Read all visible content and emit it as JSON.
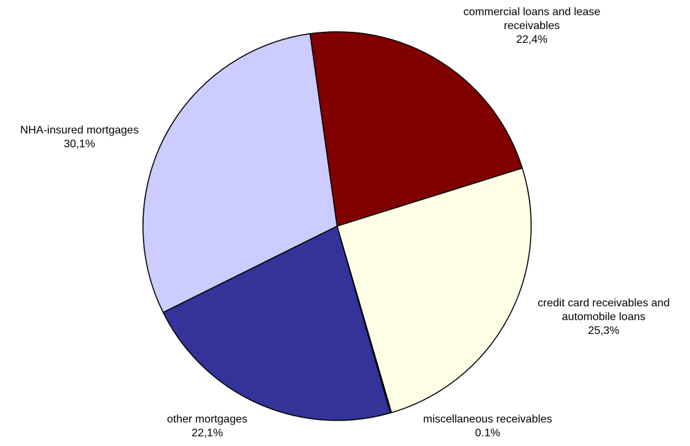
{
  "chart_data": {
    "type": "pie",
    "title": "",
    "start_angle_deg": -8,
    "direction": "clockwise",
    "slices": [
      {
        "name": "commercial loans and lease receivables",
        "value": 22.4,
        "label_lines": [
          "commercial loans and lease",
          "receivables"
        ],
        "value_label": "22,4%",
        "color": "#800000"
      },
      {
        "name": "credit card receivables and automobile loans",
        "value": 25.3,
        "label_lines": [
          "credit card receivables and",
          "automobile loans"
        ],
        "value_label": "25,3%",
        "color": "#FFFFE6"
      },
      {
        "name": "miscellaneous receivables",
        "value": 0.1,
        "label_lines": [
          "miscellaneous receivables"
        ],
        "value_label": "0.1%",
        "color": "#FFFFE6"
      },
      {
        "name": "other mortgages",
        "value": 22.1,
        "label_lines": [
          "other mortgages"
        ],
        "value_label": "22,1%",
        "color": "#333399"
      },
      {
        "name": "NHA-insured mortgages",
        "value": 30.1,
        "label_lines": [
          "NHA-insured mortgages"
        ],
        "value_label": "30,1%",
        "color": "#CCCCFF"
      }
    ]
  }
}
